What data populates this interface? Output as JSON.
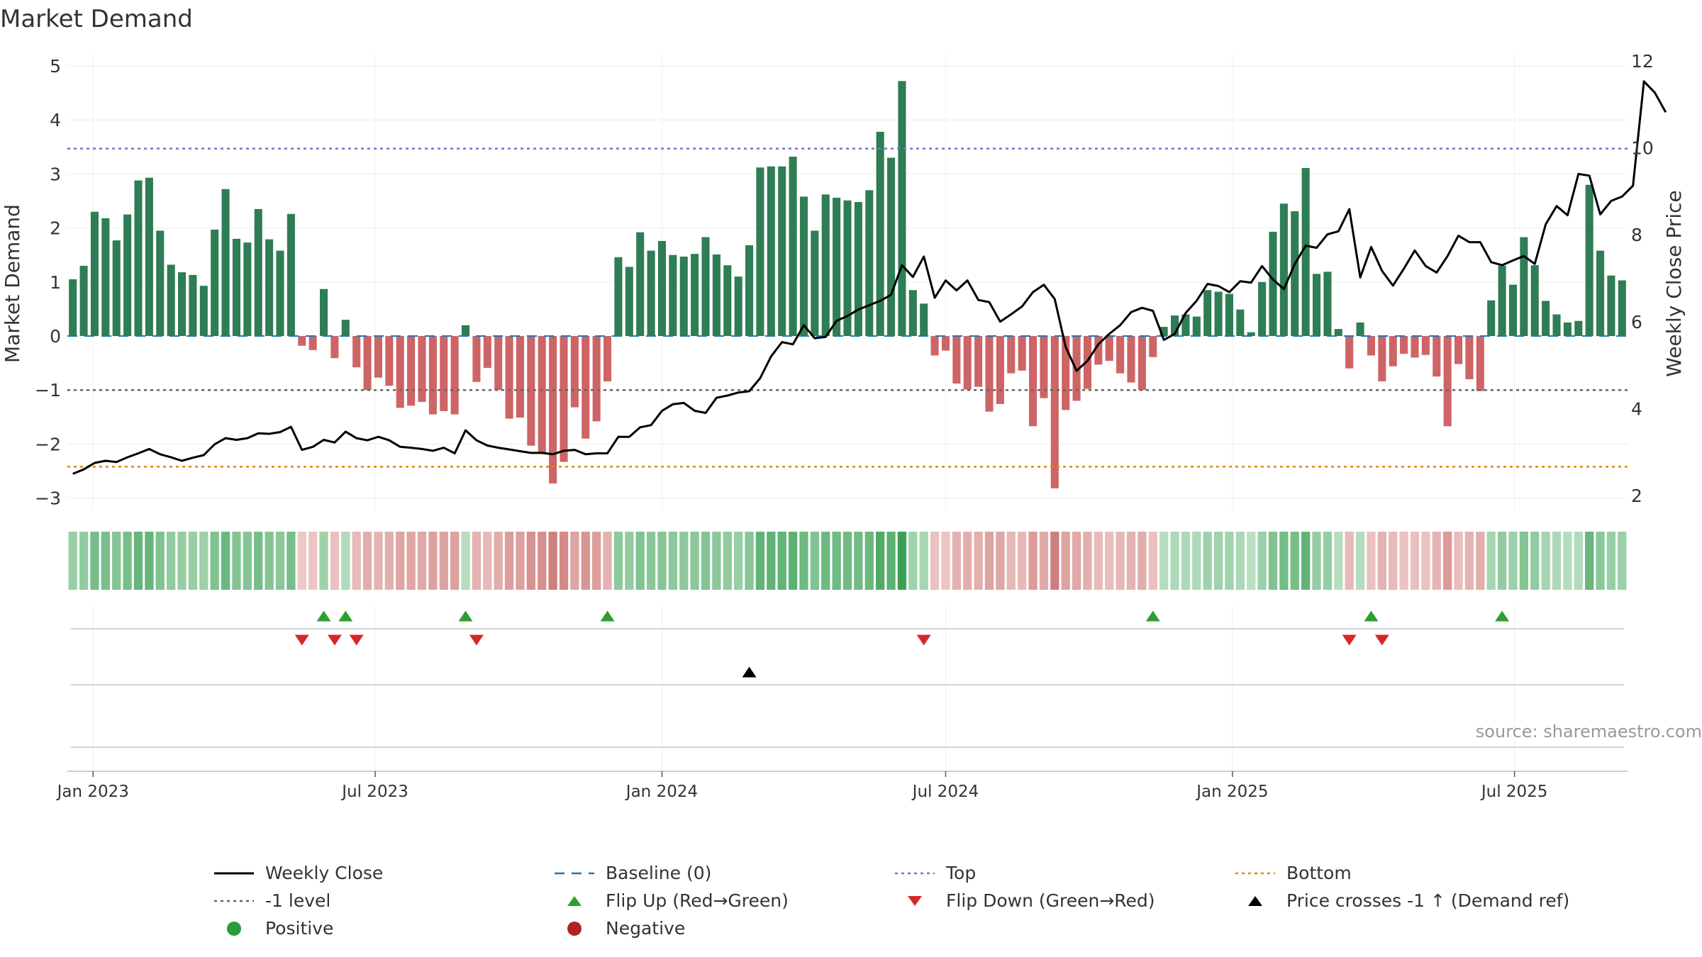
{
  "chart_data": {
    "type": "bar",
    "title": "Market Demand",
    "ylabel": "Market Demand",
    "y2label": "Weekly Close Price",
    "ylim": [
      -3.3,
      5.3
    ],
    "y2lim": [
      2.0,
      12.0
    ],
    "yticks": [
      5,
      4,
      3,
      2,
      1,
      0,
      -1,
      -2,
      -3
    ],
    "ytick_labels": [
      "5",
      "4",
      "3",
      "2",
      "1",
      "0",
      "−1",
      "−2",
      "−3"
    ],
    "y2ticks": [
      12,
      10,
      8,
      6,
      4,
      2
    ],
    "y2tick_labels": [
      "12",
      "10",
      "8",
      "6",
      "4",
      "2"
    ],
    "x_start": "2022-12-19",
    "bar_interval_days": 7,
    "x_end": "2025-09-22",
    "xticks": [
      {
        "label": "Jan 2023",
        "date": "2023-01-01"
      },
      {
        "label": "Jul 2023",
        "date": "2023-07-01"
      },
      {
        "label": "Jan 2024",
        "date": "2024-01-01"
      },
      {
        "label": "Jul 2024",
        "date": "2024-07-01"
      },
      {
        "label": "Jan 2025",
        "date": "2025-01-01"
      },
      {
        "label": "Jul 2025",
        "date": "2025-07-01"
      }
    ],
    "series": [
      {
        "name": "Market Demand",
        "type": "bar",
        "values": [
          1.05,
          1.3,
          2.3,
          2.18,
          1.77,
          2.25,
          2.88,
          2.93,
          1.95,
          1.32,
          1.18,
          1.13,
          0.93,
          1.97,
          2.72,
          1.8,
          1.73,
          2.35,
          1.79,
          1.58,
          2.26,
          -0.18,
          -0.26,
          0.87,
          -0.41,
          0.3,
          -0.58,
          -1.0,
          -0.77,
          -0.92,
          -1.33,
          -1.29,
          -1.22,
          -1.45,
          -1.39,
          -1.45,
          0.2,
          -0.85,
          -0.59,
          -1.0,
          -1.53,
          -1.51,
          -2.03,
          -2.16,
          -2.73,
          -2.33,
          -1.32,
          -1.9,
          -1.58,
          -0.84,
          1.46,
          1.28,
          1.92,
          1.58,
          1.76,
          1.5,
          1.47,
          1.52,
          1.83,
          1.51,
          1.31,
          1.1,
          1.68,
          3.12,
          3.14,
          3.14,
          3.32,
          2.58,
          1.95,
          2.62,
          2.56,
          2.51,
          2.48,
          2.7,
          3.78,
          3.3,
          4.72,
          0.85,
          0.6,
          -0.36,
          -0.27,
          -0.88,
          -0.99,
          -0.94,
          -1.4,
          -1.26,
          -0.69,
          -0.64,
          -1.67,
          -1.15,
          -2.82,
          -1.37,
          -1.2,
          -0.98,
          -0.53,
          -0.46,
          -0.69,
          -0.86,
          -1.0,
          -0.39,
          0.17,
          0.38,
          0.4,
          0.36,
          0.85,
          0.82,
          0.78,
          0.49,
          0.07,
          1.0,
          1.93,
          2.45,
          2.31,
          3.11,
          1.15,
          1.19,
          0.13,
          -0.6,
          0.25,
          -0.36,
          -0.84,
          -0.56,
          -0.33,
          -0.4,
          -0.35,
          -0.75,
          -1.67,
          -0.52,
          -0.8,
          -1.02,
          0.66,
          1.3,
          0.95,
          1.83,
          1.31,
          0.65,
          0.4,
          0.25,
          0.28,
          2.8,
          1.58,
          1.12,
          1.03
        ]
      },
      {
        "name": "Weekly Close",
        "type": "line",
        "axis": "right",
        "color": "#000000",
        "values": [
          2.5,
          2.6,
          2.75,
          2.8,
          2.77,
          2.88,
          2.97,
          3.07,
          2.95,
          2.88,
          2.8,
          2.87,
          2.93,
          3.18,
          3.32,
          3.28,
          3.32,
          3.43,
          3.42,
          3.46,
          3.58,
          3.05,
          3.12,
          3.28,
          3.22,
          3.47,
          3.32,
          3.27,
          3.35,
          3.27,
          3.12,
          3.1,
          3.07,
          3.03,
          3.1,
          2.97,
          3.5,
          3.27,
          3.15,
          3.1,
          3.06,
          3.02,
          2.98,
          2.98,
          2.95,
          3.03,
          3.05,
          2.95,
          2.97,
          2.97,
          3.35,
          3.35,
          3.57,
          3.62,
          3.95,
          4.1,
          4.13,
          3.95,
          3.9,
          4.25,
          4.3,
          4.37,
          4.4,
          4.7,
          5.2,
          5.53,
          5.48,
          5.92,
          5.62,
          5.65,
          6.02,
          6.13,
          6.28,
          6.38,
          6.48,
          6.62,
          7.3,
          7.03,
          7.5,
          6.55,
          6.95,
          6.72,
          6.95,
          6.5,
          6.45,
          6.0,
          6.17,
          6.35,
          6.68,
          6.85,
          6.52,
          5.42,
          4.87,
          5.1,
          5.48,
          5.72,
          5.92,
          6.22,
          6.32,
          6.25,
          5.58,
          5.72,
          6.2,
          6.48,
          6.87,
          6.82,
          6.68,
          6.93,
          6.9,
          7.28,
          6.97,
          6.75,
          7.33,
          7.75,
          7.7,
          8.01,
          8.08,
          8.59,
          7.02,
          7.72,
          7.17,
          6.83,
          7.22,
          7.64,
          7.28,
          7.13,
          7.51,
          7.98,
          7.83,
          7.83,
          7.37,
          7.3,
          7.41,
          7.51,
          7.33,
          8.24,
          8.66,
          8.45,
          9.4,
          9.36,
          8.47,
          8.78,
          8.88,
          9.13,
          11.53,
          11.27,
          10.82
        ]
      }
    ],
    "reference_lines": [
      {
        "name": "Baseline (0)",
        "value": 0,
        "color": "#1f77b4",
        "style": "dashed"
      },
      {
        "name": "Top",
        "value": 3.47,
        "color": "#7b72c8",
        "style": "dotted"
      },
      {
        "name": "-1 level",
        "value": -1,
        "color": "#666666",
        "style": "dotted"
      },
      {
        "name": "Bottom",
        "value": -2.42,
        "color": "#d98a00",
        "style": "dotted"
      }
    ],
    "flip_up_index": [
      23,
      25,
      36,
      49,
      99,
      119,
      131
    ],
    "flip_down_index": [
      21,
      24,
      26,
      37,
      78,
      117,
      120
    ],
    "price_cross_index": [
      62
    ],
    "colors": {
      "positive": "#2e7d55",
      "negative": "#cd6466",
      "flip_up": "#2ca02c",
      "flip_down": "#d62728",
      "price_cross": "#000000"
    },
    "annotation": "source: sharemaestro.com",
    "legend": [
      {
        "label": "Weekly Close",
        "kind": "line",
        "color": "#000000"
      },
      {
        "label": "Baseline (0)",
        "kind": "dashed",
        "color": "#1f77b4"
      },
      {
        "label": "Top",
        "kind": "dotted",
        "color": "#7b72c8"
      },
      {
        "label": "Bottom",
        "kind": "dotted",
        "color": "#d98a00"
      },
      {
        "label": "-1 level",
        "kind": "dotted",
        "color": "#666666"
      },
      {
        "label": "Flip Up (Red→Green)",
        "kind": "tri-up",
        "color": "#2ca02c"
      },
      {
        "label": "Flip Down (Green→Red)",
        "kind": "tri-down",
        "color": "#d62728"
      },
      {
        "label": "Price crosses -1 ↑ (Demand ref)",
        "kind": "tri-up",
        "color": "#000000"
      },
      {
        "label": "Positive",
        "kind": "dot",
        "color": "#2a9d3a"
      },
      {
        "label": "Negative",
        "kind": "dot",
        "color": "#b22222"
      }
    ]
  }
}
